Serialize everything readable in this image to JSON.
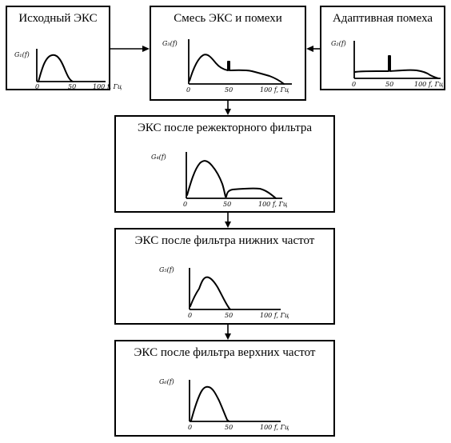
{
  "blocks": {
    "source_ecg": {
      "title": "Исходный ЭКС",
      "ylabel": "G₁(f)",
      "ticks": [
        "0",
        "50",
        "100 f, Гц"
      ]
    },
    "mixed": {
      "title": "Смесь ЭКС и помехи",
      "ylabel": "G₃(f)",
      "ticks": [
        "0",
        "50",
        "100 f, Гц"
      ]
    },
    "adaptive_noise": {
      "title": "Адаптивная помеха",
      "ylabel": "G₂(f)",
      "ticks": [
        "0",
        "50",
        "100 f, Гц"
      ]
    },
    "notch": {
      "title": "ЭКС после режекторного фильтра",
      "ylabel": "G₄(f)",
      "ticks": [
        "0",
        "50",
        "100 f, Гц"
      ]
    },
    "lowpass": {
      "title": "ЭКС после фильтра нижних частот",
      "ylabel": "G₅(f)",
      "ticks": [
        "0",
        "50",
        "100 f, Гц"
      ]
    },
    "highpass": {
      "title": "ЭКС после фильтра верхних частот",
      "ylabel": "G₆(f)",
      "ticks": [
        "0",
        "50",
        "100 f, Гц"
      ]
    }
  }
}
